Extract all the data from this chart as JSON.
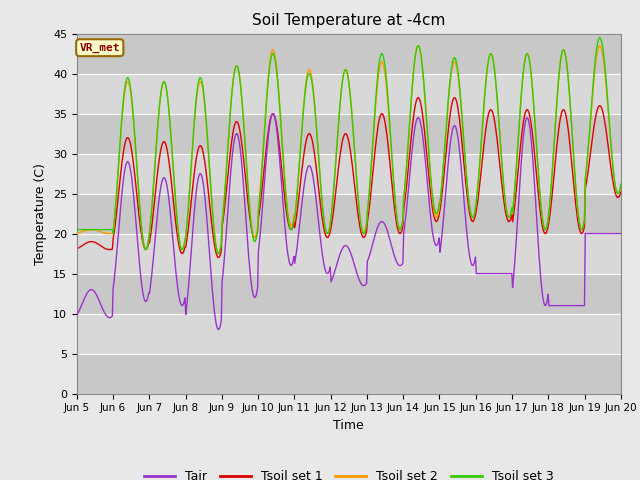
{
  "title": "Soil Temperature at -4cm",
  "xlabel": "Time",
  "ylabel": "Temperature (C)",
  "ylim": [
    0,
    45
  ],
  "yticks": [
    0,
    5,
    10,
    15,
    20,
    25,
    30,
    35,
    40,
    45
  ],
  "fig_bg_color": "#e8e8e8",
  "plot_bg_color": "#cccccc",
  "band_colors": [
    "#d0d0d0",
    "#bebebe"
  ],
  "legend_items": [
    "Tair",
    "Tsoil set 1",
    "Tsoil set 2",
    "Tsoil set 3"
  ],
  "legend_colors": [
    "#9933cc",
    "#dd0000",
    "#ff9900",
    "#33cc00"
  ],
  "annotation_text": "VR_met",
  "annotation_bg": "#ffffcc",
  "annotation_border": "#996600",
  "annotation_text_color": "#880000",
  "xticklabels": [
    "Jun 5",
    "Jun 6",
    "Jun 7",
    "Jun 8",
    "Jun 9",
    "Jun 10",
    "Jun 11",
    "Jun 12",
    "Jun 13",
    "Jun 14",
    "Jun 15",
    "Jun 16",
    "Jun 17",
    "Jun 18",
    "Jun 19",
    "Jun 20"
  ],
  "n_days": 15,
  "tair_min": [
    9.5,
    11.5,
    11.0,
    8.0,
    12.0,
    16.0,
    15.0,
    13.5,
    16.0,
    18.5,
    16.0,
    15.0,
    11.0,
    11.0,
    20.0
  ],
  "tair_max": [
    13.0,
    29.0,
    27.0,
    27.5,
    32.5,
    35.0,
    28.5,
    18.5,
    21.5,
    34.5,
    33.5,
    15.0,
    34.5,
    11.0,
    20.0
  ],
  "tsoil1_min": [
    18.0,
    18.0,
    17.5,
    17.0,
    19.5,
    20.5,
    19.5,
    19.5,
    20.0,
    21.5,
    21.5,
    21.5,
    20.0,
    20.0,
    24.5
  ],
  "tsoil1_max": [
    19.0,
    32.0,
    31.5,
    31.0,
    34.0,
    35.0,
    32.5,
    32.5,
    35.0,
    37.0,
    37.0,
    35.5,
    35.5,
    35.5,
    36.0
  ],
  "tsoil2_min": [
    20.0,
    18.0,
    18.0,
    17.5,
    19.5,
    21.0,
    20.0,
    20.0,
    20.5,
    22.0,
    22.0,
    22.0,
    20.5,
    20.5,
    25.0
  ],
  "tsoil2_max": [
    20.5,
    39.0,
    39.0,
    39.0,
    41.0,
    43.0,
    40.5,
    40.5,
    41.5,
    43.5,
    41.5,
    42.5,
    42.5,
    43.0,
    43.5
  ],
  "tsoil3_min": [
    20.5,
    18.0,
    18.0,
    17.5,
    19.0,
    20.5,
    20.0,
    20.0,
    20.5,
    22.5,
    22.0,
    22.0,
    20.5,
    20.5,
    25.0
  ],
  "tsoil3_max": [
    20.5,
    39.5,
    39.0,
    39.5,
    41.0,
    42.5,
    40.0,
    40.5,
    42.5,
    43.5,
    42.0,
    42.5,
    42.5,
    43.0,
    44.5
  ]
}
